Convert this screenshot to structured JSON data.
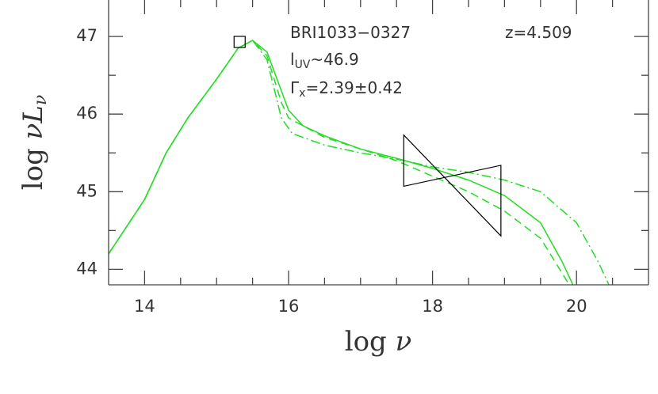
{
  "chart_data": {
    "type": "line",
    "x_label": {
      "text": "log ",
      "greek": "ν"
    },
    "y_label": {
      "text": "log ",
      "greek": "νL",
      "sub": "ν"
    },
    "xlim": [
      13.5,
      21
    ],
    "ylim": [
      43.8,
      47.47
    ],
    "xticks": [
      14,
      16,
      18,
      20
    ],
    "yticks": [
      44,
      45,
      46,
      47
    ],
    "xminorticks": [
      14.5,
      15,
      15.5,
      16.5,
      17,
      17.5,
      18.5,
      19,
      19.5,
      20.5
    ],
    "yminorticks": [
      44.5,
      45.5,
      46.5
    ],
    "annotations": [
      {
        "text": "BRI1033−0327"
      },
      {
        "text": "z=4.509"
      },
      {
        "text": "l",
        "sub": "UV",
        "rest": "~46.9"
      },
      {
        "text": "Γ",
        "sub": "x",
        "rest": "=2.39±0.42"
      }
    ],
    "series": [
      {
        "color": "#22dd22",
        "style": "solid",
        "x": [
          13.5,
          14.0,
          14.3,
          14.6,
          15.0,
          15.3,
          15.5,
          15.7,
          15.9,
          16.0,
          16.2,
          16.5,
          17.0,
          17.5,
          18.0,
          18.5,
          19.0,
          19.5,
          19.8,
          19.95
        ],
        "values": [
          44.2,
          44.9,
          45.5,
          45.95,
          46.45,
          46.85,
          46.95,
          46.8,
          46.3,
          46.05,
          45.85,
          45.72,
          45.55,
          45.43,
          45.3,
          45.15,
          44.95,
          44.6,
          44.1,
          43.8
        ]
      },
      {
        "color": "#22dd22",
        "style": "dashed",
        "x": [
          13.5,
          14.0,
          14.3,
          14.6,
          15.0,
          15.3,
          15.5,
          15.7,
          15.9,
          16.0,
          16.5,
          17.0,
          17.5,
          18.0,
          18.5,
          19.0,
          19.5,
          19.9
        ],
        "values": [
          44.2,
          44.9,
          45.5,
          45.95,
          46.45,
          46.85,
          46.95,
          46.75,
          46.15,
          45.95,
          45.7,
          45.55,
          45.4,
          45.2,
          45.0,
          44.75,
          44.4,
          43.8
        ]
      },
      {
        "color": "#22dd22",
        "style": "dashdot",
        "x": [
          13.5,
          14.0,
          14.3,
          14.6,
          15.0,
          15.3,
          15.5,
          15.7,
          15.9,
          16.05,
          16.5,
          17.0,
          17.5,
          18.0,
          18.5,
          19.0,
          19.5,
          20.0,
          20.3,
          20.45
        ],
        "values": [
          44.2,
          44.9,
          45.5,
          45.95,
          46.45,
          46.85,
          46.95,
          46.7,
          45.95,
          45.75,
          45.6,
          45.5,
          45.42,
          45.32,
          45.25,
          45.15,
          45.0,
          44.6,
          44.1,
          43.8
        ]
      }
    ],
    "points": {
      "x": [
        15.32
      ],
      "values": [
        46.93
      ],
      "color": "#000000"
    },
    "bowtie": {
      "x": [
        17.6,
        18.95
      ],
      "left": [
        45.07,
        45.73
      ],
      "right": [
        44.43,
        45.34
      ],
      "color": "#000000"
    }
  }
}
